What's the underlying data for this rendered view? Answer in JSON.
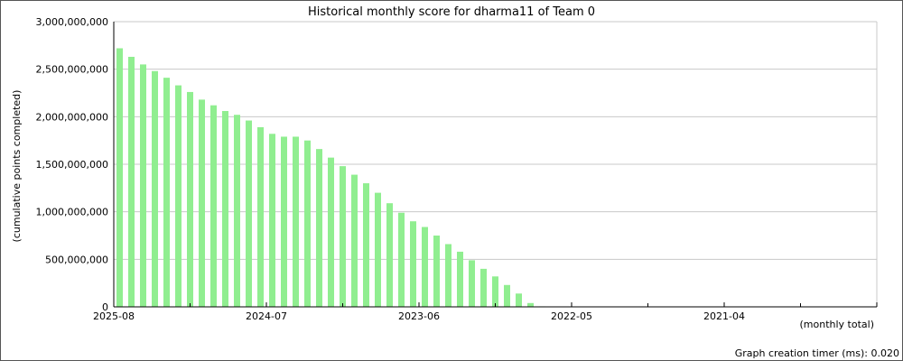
{
  "chart_data": {
    "type": "bar",
    "title": "Historical monthly score for dharma11 of Team 0",
    "ylabel": "(cumulative points completed)",
    "xlabel": "(monthly total)",
    "footer": "Graph creation timer (ms): 0.020",
    "ylim": [
      0,
      3000000000
    ],
    "y_ticks": [
      "0",
      "500,000,000",
      "1,000,000,000",
      "1,500,000,000",
      "2,000,000,000",
      "2,500,000,000",
      "3,000,000,000"
    ],
    "x_tick_labels": [
      "2025-08",
      "2024-07",
      "2023-06",
      "2022-05",
      "2021-04"
    ],
    "grid": true,
    "values": [
      2720000000,
      2630000000,
      2550000000,
      2480000000,
      2410000000,
      2330000000,
      2260000000,
      2180000000,
      2120000000,
      2060000000,
      2020000000,
      1960000000,
      1890000000,
      1820000000,
      1790000000,
      1790000000,
      1750000000,
      1660000000,
      1570000000,
      1480000000,
      1390000000,
      1300000000,
      1200000000,
      1090000000,
      990000000,
      900000000,
      840000000,
      750000000,
      660000000,
      580000000,
      490000000,
      400000000,
      320000000,
      230000000,
      140000000,
      40000000,
      5000000,
      0,
      0,
      0,
      0,
      0,
      0,
      0,
      0,
      0,
      0,
      0,
      0,
      0,
      0,
      0,
      0,
      0,
      0,
      0,
      0,
      0,
      0,
      0,
      0,
      0,
      0,
      0,
      0
    ],
    "colors": {
      "bar": "#90ee90",
      "grid": "#c8c8c8",
      "axis": "#000000"
    }
  }
}
